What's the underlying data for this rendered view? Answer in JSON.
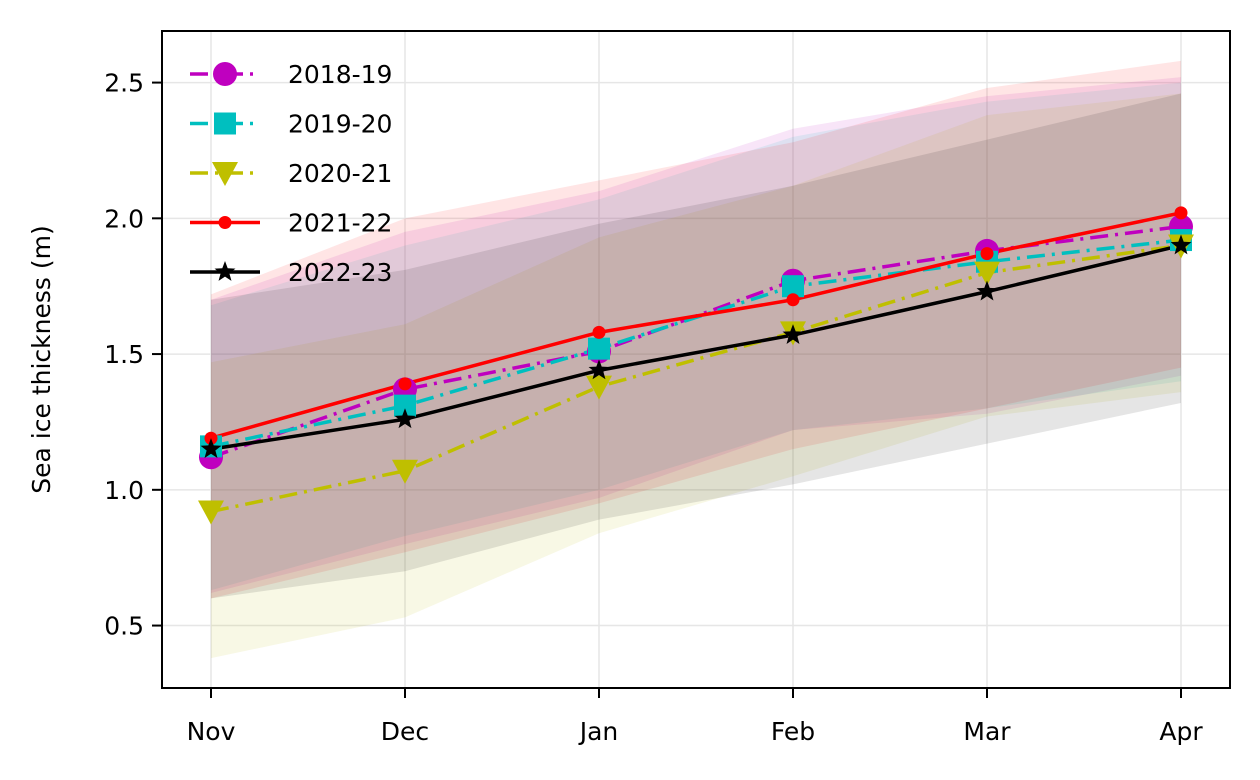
{
  "chart_data": {
    "type": "line",
    "title": "",
    "xlabel": "",
    "ylabel": "Sea ice thickness (m)",
    "categories": [
      "Nov",
      "Dec",
      "Jan",
      "Feb",
      "Mar",
      "Apr"
    ],
    "ylim": [
      0.27,
      2.69
    ],
    "yticks": [
      0.5,
      1.0,
      1.5,
      2.0,
      2.5
    ],
    "ytick_labels": [
      "0.5",
      "1.0",
      "1.5",
      "2.0",
      "2.5"
    ],
    "grid": true,
    "legend_position": "top-left",
    "series": [
      {
        "name": "2018-19",
        "color": "#bf00bf",
        "linestyle": "dashdot",
        "marker": "circle",
        "values": [
          1.12,
          1.37,
          1.51,
          1.77,
          1.88,
          1.97
        ],
        "lower": [
          0.62,
          0.8,
          0.97,
          1.22,
          1.28,
          1.42
        ],
        "upper": [
          1.7,
          1.95,
          2.1,
          2.33,
          2.45,
          2.52
        ]
      },
      {
        "name": "2019-20",
        "color": "#00bfbf",
        "linestyle": "dashdot",
        "marker": "square",
        "values": [
          1.16,
          1.31,
          1.52,
          1.75,
          1.84,
          1.92
        ],
        "lower": [
          0.63,
          0.83,
          1.0,
          1.22,
          1.3,
          1.4
        ],
        "upper": [
          1.68,
          1.9,
          2.07,
          2.3,
          2.43,
          2.5
        ]
      },
      {
        "name": "2020-21",
        "color": "#bfbf00",
        "linestyle": "dashdot",
        "marker": "triangle-down",
        "values": [
          0.92,
          1.07,
          1.38,
          1.58,
          1.8,
          1.9
        ],
        "lower": [
          0.38,
          0.53,
          0.84,
          1.05,
          1.27,
          1.36
        ],
        "upper": [
          1.47,
          1.61,
          1.93,
          2.12,
          2.38,
          2.46
        ]
      },
      {
        "name": "2021-22",
        "color": "#ff0000",
        "linestyle": "solid",
        "marker": "dot",
        "values": [
          1.19,
          1.39,
          1.58,
          1.7,
          1.87,
          2.02
        ],
        "lower": [
          0.6,
          0.77,
          0.95,
          1.15,
          1.3,
          1.45
        ],
        "upper": [
          1.72,
          2.0,
          2.14,
          2.28,
          2.48,
          2.58
        ]
      },
      {
        "name": "2022-23",
        "color": "#000000",
        "linestyle": "solid",
        "marker": "star",
        "values": [
          1.15,
          1.26,
          1.44,
          1.57,
          1.73,
          1.9
        ],
        "lower": [
          0.6,
          0.7,
          0.89,
          1.02,
          1.17,
          1.32
        ],
        "upper": [
          1.7,
          1.81,
          1.98,
          2.12,
          2.29,
          2.46
        ]
      }
    ]
  }
}
